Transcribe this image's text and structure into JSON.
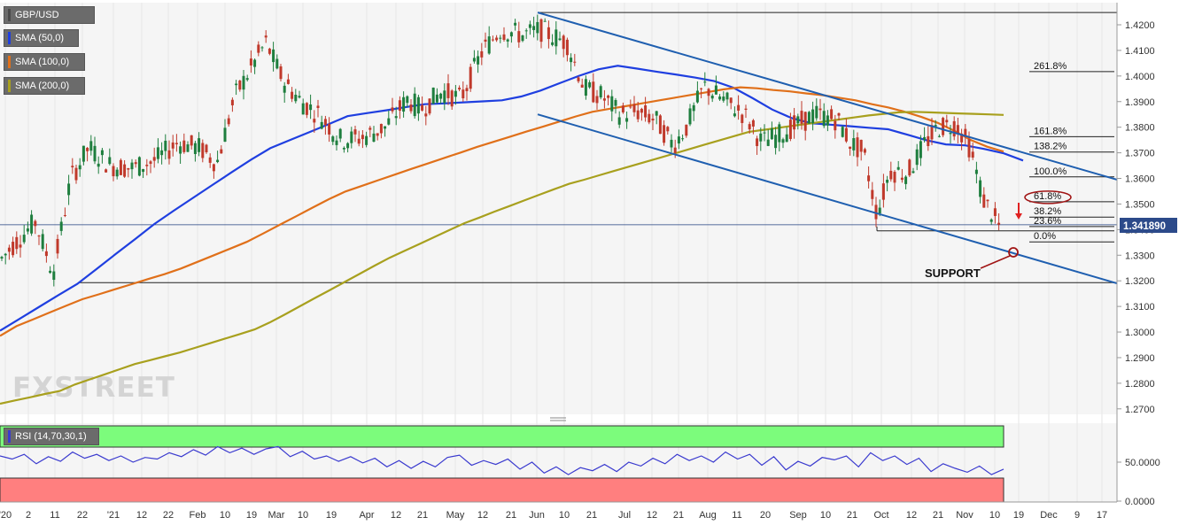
{
  "legend": {
    "symbol": "GBP/USD",
    "sma50": "SMA (50,0)",
    "sma100": "SMA (100,0)",
    "sma200": "SMA (200,0)",
    "rsi": "RSI (14,70,30,1)"
  },
  "colors": {
    "sma50": "#1f3fe0",
    "sma100": "#e0701a",
    "sma200": "#a8a01e",
    "candle_up": "#1e7e3e",
    "candle_down": "#c0392b",
    "channel": "#1f5fb0",
    "rsi_overbought": "#7cfc7c",
    "rsi_oversold": "#ff7f7f",
    "rsi_line": "#3b3bcf",
    "price_badge": "#2c4a8a",
    "fib_circle": "#a01414"
  },
  "watermark": "FXSTREET",
  "price_badge": "1.341890",
  "annotation": "SUPPORT",
  "chart_data": [
    {
      "type": "candlestick",
      "title": "GBP/USD",
      "y_ticks": [
        "1.4200",
        "1.4100",
        "1.4000",
        "1.3900",
        "1.3800",
        "1.3700",
        "1.3600",
        "1.3500",
        "1.3400",
        "1.3300",
        "1.3200",
        "1.3100",
        "1.3000",
        "1.2900",
        "1.2800",
        "1.2700"
      ],
      "ylim": [
        1.265,
        1.4265
      ],
      "x_ticks": [
        "'20",
        "2",
        "11",
        "22",
        "'21",
        "12",
        "22",
        "Feb",
        "10",
        "19",
        "Mar",
        "10",
        "19",
        "Apr",
        "12",
        "21",
        "May",
        "12",
        "21",
        "Jun",
        "10",
        "21",
        "Jul",
        "12",
        "21",
        "Aug",
        "11",
        "20",
        "Sep",
        "10",
        "21",
        "Oct",
        "12",
        "21",
        "Nov",
        "10",
        "19",
        "Dec",
        "9",
        "17"
      ],
      "last_price": 1.34189,
      "fib_levels": [
        {
          "label": "261.8%",
          "value": 1.4017
        },
        {
          "label": "161.8%",
          "value": 1.3763
        },
        {
          "label": "138.2%",
          "value": 1.3703
        },
        {
          "label": "100.0%",
          "value": 1.3606
        },
        {
          "label": "61.8%",
          "value": 1.3509
        },
        {
          "label": "38.2%",
          "value": 1.3449
        },
        {
          "label": "23.6%",
          "value": 1.3412
        },
        {
          "label": "0.0%",
          "value": 1.3352
        }
      ],
      "horizontal_levels": [
        1.4248,
        1.3419,
        1.3193
      ],
      "series": [
        {
          "name": "SMA (50,0)",
          "values": [
            1.3005,
            1.3051,
            1.3097,
            1.3143,
            1.3188,
            1.3246,
            1.3305,
            1.3363,
            1.3422,
            1.3474,
            1.3524,
            1.3574,
            1.3624,
            1.3673,
            1.3718,
            1.3749,
            1.378,
            1.3811,
            1.3843,
            1.3855,
            1.3866,
            1.3878,
            1.389,
            1.3893,
            1.3897,
            1.3901,
            1.3905,
            1.392,
            1.3943,
            1.3972,
            1.4001,
            1.4026,
            1.404,
            1.4029,
            1.4017,
            1.4006,
            1.3994,
            1.398,
            1.3954,
            1.3913,
            1.3869,
            1.3836,
            1.3816,
            1.381,
            1.3804,
            1.3798,
            1.3792,
            1.3771,
            1.3749,
            1.3733,
            1.3729,
            1.3715,
            1.3698,
            1.367
          ]
        },
        {
          "name": "SMA (100,0)",
          "values": [
            1.2985,
            1.3023,
            1.3049,
            1.3076,
            1.3102,
            1.3128,
            1.3147,
            1.3167,
            1.3187,
            1.3207,
            1.3226,
            1.3248,
            1.3274,
            1.33,
            1.3326,
            1.3352,
            1.3385,
            1.3419,
            1.3452,
            1.3486,
            1.3519,
            1.3549,
            1.3571,
            1.3593,
            1.3615,
            1.3637,
            1.3658,
            1.368,
            1.3701,
            1.3723,
            1.3743,
            1.3763,
            1.3783,
            1.3802,
            1.3822,
            1.3842,
            1.386,
            1.3871,
            1.3882,
            1.3893,
            1.3904,
            1.3915,
            1.3926,
            1.3937,
            1.3948,
            1.3956,
            1.3952,
            1.3945,
            1.394,
            1.3932,
            1.3925,
            1.3915,
            1.3905,
            1.389,
            1.3877,
            1.386,
            1.384,
            1.3817,
            1.3786,
            1.375,
            1.3724,
            1.3705
          ]
        },
        {
          "name": "SMA (200,0)",
          "values": [
            1.272,
            1.2733,
            1.2745,
            1.2758,
            1.277,
            1.2795,
            1.2815,
            1.2835,
            1.2855,
            1.2875,
            1.289,
            1.2905,
            1.292,
            1.2938,
            1.2956,
            1.2974,
            1.2992,
            1.301,
            1.3037,
            1.3068,
            1.31,
            1.3132,
            1.3163,
            1.3195,
            1.3227,
            1.3259,
            1.329,
            1.3317,
            1.3344,
            1.3371,
            1.3398,
            1.3425,
            1.3447,
            1.347,
            1.3492,
            1.3514,
            1.3536,
            1.3558,
            1.3579,
            1.3595,
            1.3612,
            1.3629,
            1.3646,
            1.3663,
            1.368,
            1.3697,
            1.3714,
            1.3731,
            1.3748,
            1.3765,
            1.3782,
            1.379,
            1.3798,
            1.3806,
            1.3814,
            1.3822,
            1.383,
            1.3838,
            1.3846,
            1.3852,
            1.3858,
            1.386,
            1.3858,
            1.3856,
            1.3854,
            1.3852,
            1.385,
            1.3848
          ]
        }
      ]
    },
    {
      "type": "line",
      "title": "RSI (14,70,30,1)",
      "y_ticks": [
        "50.0000",
        "0.0000"
      ],
      "ylim": [
        0,
        100
      ],
      "overbought": 70,
      "oversold": 30,
      "series": [
        {
          "name": "RSI (14,70,30,1)",
          "values": [
            58,
            54,
            60,
            48,
            57,
            51,
            63,
            55,
            60,
            52,
            58,
            50,
            56,
            54,
            62,
            57,
            66,
            59,
            70,
            62,
            68,
            60,
            67,
            70,
            57,
            64,
            54,
            58,
            51,
            57,
            49,
            55,
            44,
            52,
            42,
            51,
            44,
            56,
            59,
            46,
            52,
            47,
            54,
            41,
            50,
            36,
            44,
            34,
            43,
            39,
            47,
            38,
            50,
            45,
            55,
            48,
            60,
            52,
            58,
            50,
            63,
            54,
            60,
            46,
            57,
            40,
            51,
            45,
            56,
            53,
            58,
            44,
            62,
            52,
            58,
            47,
            55,
            38,
            48,
            42,
            37,
            45,
            34,
            41
          ]
        }
      ]
    }
  ]
}
